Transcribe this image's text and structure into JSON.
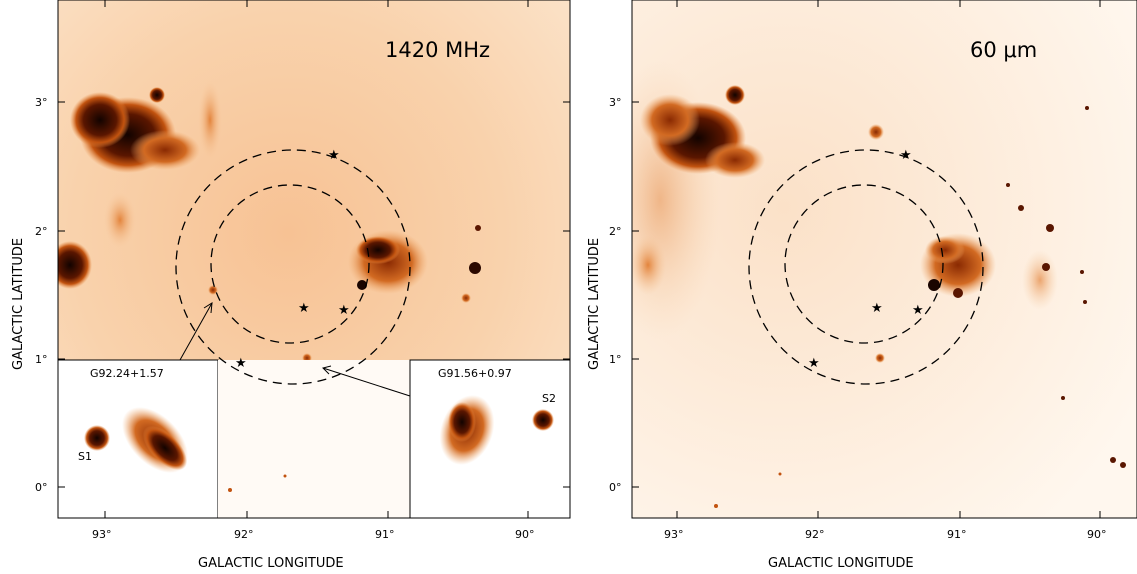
{
  "panels": [
    {
      "id": "left",
      "band_label": "1420 MHz",
      "x_ticks": [
        "93°",
        "92°",
        "91°",
        "90°"
      ],
      "y_ticks": [
        "3°",
        "2°",
        "1°",
        "0°"
      ],
      "xlabel": "GALACTIC LONGITUDE",
      "ylabel": "GALACTIC LATITUDE",
      "insets": [
        {
          "title": "G92.24+1.57",
          "source_label": "S1"
        },
        {
          "title": "G91.56+0.97",
          "source_label": "S2"
        }
      ]
    },
    {
      "id": "right",
      "band_label": "60 μm",
      "x_ticks": [
        "93°",
        "92°",
        "91°",
        "90°"
      ],
      "y_ticks": [
        "3°",
        "2°",
        "1°",
        "0°"
      ],
      "xlabel": "GALACTIC LONGITUDE",
      "ylabel": "GALACTIC LATITUDE"
    }
  ],
  "colors": {
    "background_emission": "#fbd9b7",
    "bright_emission": "#1a0500",
    "mid_emission": "#c24a0e"
  },
  "marker_symbol": "★"
}
